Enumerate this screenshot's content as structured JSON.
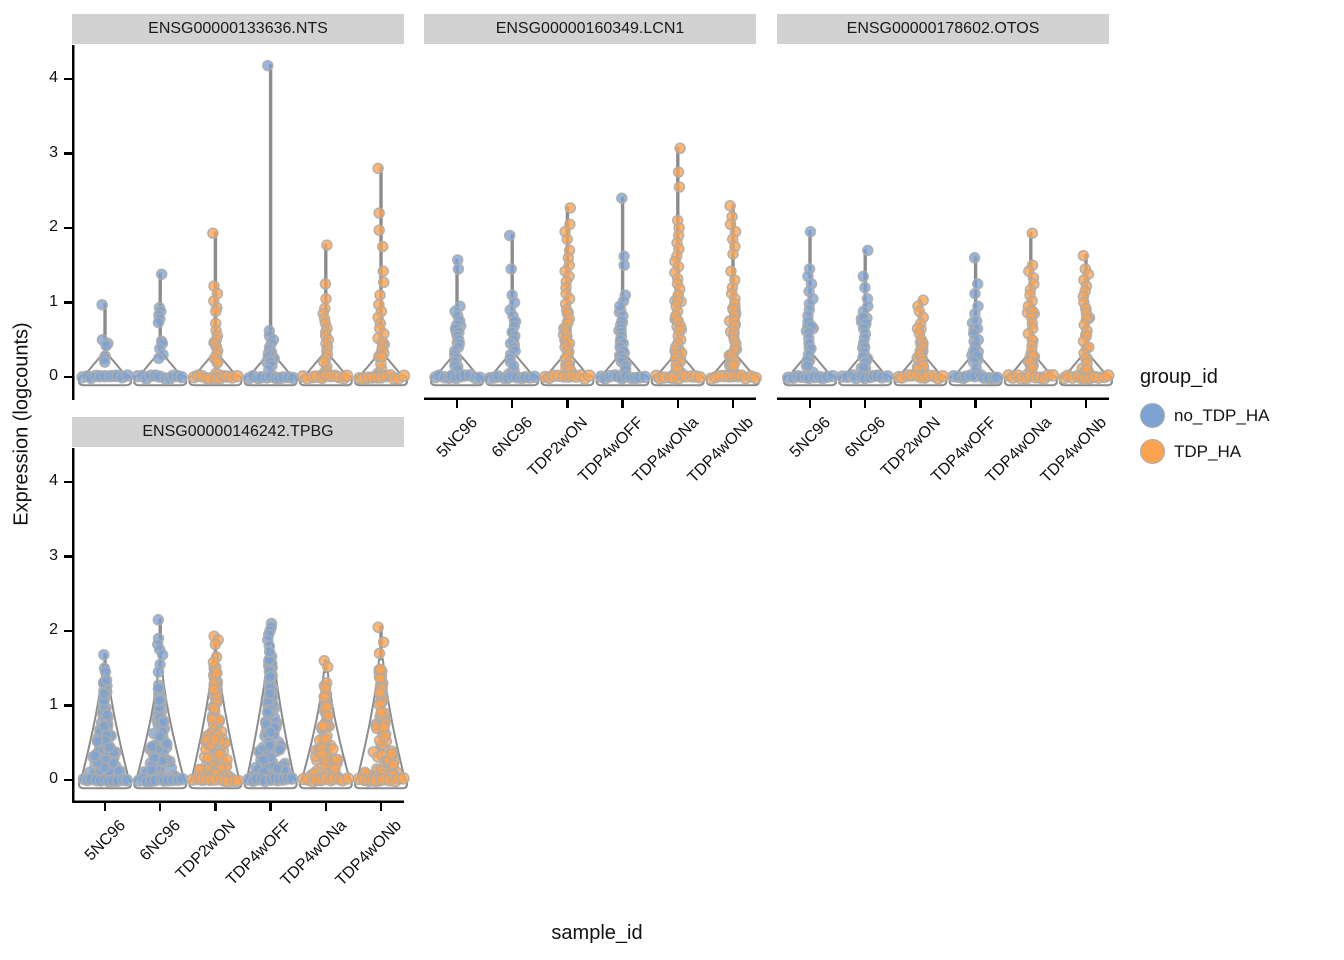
{
  "chart_data": {
    "type": "violin",
    "title": "",
    "xlabel": "sample_id",
    "ylabel": "Expression (logcounts)",
    "ylim": [
      0,
      4
    ],
    "y_ticks": [
      "0",
      "1",
      "2",
      "3",
      "4"
    ],
    "grid": false,
    "samples": [
      "5NC96",
      "6NC96",
      "TDP2wON",
      "TDP4wOFF",
      "TDP4wONa",
      "TDP4wONb"
    ],
    "legend": {
      "title": "group_id",
      "position": "right",
      "entries": [
        {
          "label": "no_TDP_HA",
          "color": "#7CA3D2"
        },
        {
          "label": "TDP_HA",
          "color": "#FBA350"
        }
      ]
    },
    "sample_groups": {
      "5NC96": "no_TDP_HA",
      "6NC96": "no_TDP_HA",
      "TDP2wON": "TDP_HA",
      "TDP4wOFF": "no_TDP_HA",
      "TDP4wONa": "TDP_HA",
      "TDP4wONb": "TDP_HA"
    },
    "style": {
      "violin_outline": "#8C8C8C",
      "point_stroke": "#ACACAC",
      "header_bg": "#D2D2D2",
      "axis_color": "#000000"
    },
    "facets": [
      {
        "gene": "ENSG00000133636.NTS",
        "violins": [
          {
            "sample": "5NC96",
            "group": 0,
            "max": 0.97,
            "points": [
              0.97,
              0.5,
              0.45,
              0.42,
              0.28,
              0.25,
              0.2
            ],
            "base_n": 11,
            "dense_n": 0,
            "dense_to": 0
          },
          {
            "sample": "6NC96",
            "group": 0,
            "max": 1.38,
            "points": [
              1.38,
              0.93,
              0.88,
              0.83,
              0.78,
              0.73,
              0.48,
              0.45,
              0.38,
              0.3,
              0.25
            ],
            "base_n": 11,
            "dense_n": 0,
            "dense_to": 0
          },
          {
            "sample": "TDP2wON",
            "group": 1,
            "max": 1.93,
            "points": [
              1.93,
              1.22,
              1.12,
              1.02,
              0.93,
              0.88,
              0.72,
              0.62,
              0.55,
              0.5,
              0.45,
              0.4,
              0.35,
              0.3,
              0.25,
              0.2
            ],
            "base_n": 11,
            "dense_n": 6,
            "dense_to": 0.5
          },
          {
            "sample": "TDP4wOFF",
            "group": 0,
            "max": 4.18,
            "points": [
              4.18,
              0.62,
              0.55,
              0.5,
              0.45,
              0.4,
              0.37,
              0.33,
              0.3,
              0.27,
              0.23,
              0.2,
              0.15,
              0.1
            ],
            "base_n": 11,
            "dense_n": 6,
            "dense_to": 0.45
          },
          {
            "sample": "TDP4wONa",
            "group": 1,
            "max": 1.77,
            "points": [
              1.77,
              1.25,
              1.05,
              0.92,
              0.85,
              0.78,
              0.72,
              0.65,
              0.6,
              0.55,
              0.5,
              0.45,
              0.4,
              0.35,
              0.3,
              0.25,
              0.2
            ],
            "base_n": 11,
            "dense_n": 6,
            "dense_to": 0.6
          },
          {
            "sample": "TDP4wONb",
            "group": 1,
            "max": 2.8,
            "points": [
              2.8,
              2.2,
              1.97,
              1.75,
              1.42,
              1.27,
              1.1,
              0.97,
              0.88,
              0.8,
              0.72,
              0.65,
              0.58,
              0.52,
              0.47,
              0.42,
              0.37,
              0.32,
              0.27
            ],
            "base_n": 11,
            "dense_n": 8,
            "dense_to": 0.6
          }
        ]
      },
      {
        "gene": "ENSG00000160349.LCN1",
        "violins": [
          {
            "sample": "5NC96",
            "group": 0,
            "max": 1.57,
            "points": [
              1.57,
              1.45,
              0.95,
              0.88,
              0.82,
              0.75,
              0.7,
              0.65,
              0.6,
              0.55,
              0.5,
              0.45,
              0.4,
              0.35,
              0.3,
              0.25,
              0.2,
              0.15,
              0.1
            ],
            "base_n": 11,
            "dense_n": 8,
            "dense_to": 0.7
          },
          {
            "sample": "6NC96",
            "group": 0,
            "max": 1.9,
            "points": [
              1.9,
              1.45,
              1.1,
              1.0,
              0.9,
              0.82,
              0.75,
              0.68,
              0.6,
              0.55,
              0.5,
              0.45,
              0.4,
              0.35,
              0.3,
              0.25,
              0.2,
              0.15
            ],
            "base_n": 11,
            "dense_n": 8,
            "dense_to": 0.75
          },
          {
            "sample": "TDP2wON",
            "group": 1,
            "max": 2.27,
            "points": [
              2.27,
              2.05,
              1.95,
              1.85,
              1.7,
              1.6,
              1.5,
              1.42,
              1.35,
              1.28,
              1.2,
              1.12,
              1.05,
              0.98,
              0.9,
              0.85,
              0.78,
              0.72,
              0.65,
              0.6,
              0.55,
              0.5,
              0.45,
              0.4,
              0.35,
              0.3,
              0.25,
              0.2,
              0.15,
              0.1
            ],
            "base_n": 11,
            "dense_n": 16,
            "dense_to": 1.0
          },
          {
            "sample": "TDP4wOFF",
            "group": 0,
            "max": 2.4,
            "points": [
              2.4,
              1.62,
              1.5,
              1.1,
              1.02,
              0.95,
              0.82,
              0.75,
              0.7,
              0.65,
              0.6,
              0.55,
              0.5,
              0.45,
              0.4,
              0.35,
              0.3,
              0.25,
              0.2,
              0.15,
              0.1
            ],
            "base_n": 11,
            "dense_n": 12,
            "dense_to": 0.9
          },
          {
            "sample": "TDP4wONa",
            "group": 1,
            "max": 3.07,
            "points": [
              3.07,
              2.75,
              2.55,
              2.1,
              2.0,
              1.9,
              1.8,
              1.72,
              1.62,
              1.55,
              1.48,
              1.4,
              1.32,
              1.25,
              1.18,
              1.1,
              1.02,
              0.95,
              0.88,
              0.82,
              0.75,
              0.68,
              0.62,
              0.55,
              0.5,
              0.45,
              0.4,
              0.35,
              0.3,
              0.25,
              0.2,
              0.15,
              0.1
            ],
            "base_n": 11,
            "dense_n": 18,
            "dense_to": 1.1
          },
          {
            "sample": "TDP4wONb",
            "group": 1,
            "max": 2.3,
            "points": [
              2.3,
              2.15,
              2.05,
              1.95,
              1.85,
              1.75,
              1.65,
              1.42,
              1.3,
              1.2,
              1.12,
              1.05,
              0.98,
              0.9,
              0.82,
              0.75,
              0.68,
              0.6,
              0.55,
              0.5,
              0.45,
              0.4,
              0.35,
              0.3,
              0.25,
              0.2,
              0.15
            ],
            "base_n": 11,
            "dense_n": 16,
            "dense_to": 1.0
          }
        ]
      },
      {
        "gene": "ENSG00000178602.OTOS",
        "violins": [
          {
            "sample": "5NC96",
            "group": 0,
            "max": 1.95,
            "points": [
              1.95,
              1.45,
              1.35,
              1.25,
              1.15,
              1.05,
              0.98,
              0.9,
              0.82,
              0.75,
              0.68,
              0.6,
              0.52,
              0.45,
              0.38,
              0.3,
              0.22,
              0.15
            ],
            "base_n": 11,
            "dense_n": 8,
            "dense_to": 0.8
          },
          {
            "sample": "6NC96",
            "group": 0,
            "max": 1.7,
            "points": [
              1.7,
              1.35,
              1.2,
              1.05,
              0.95,
              0.88,
              0.8,
              0.72,
              0.65,
              0.58,
              0.52,
              0.45,
              0.4,
              0.33,
              0.27,
              0.2,
              0.13
            ],
            "base_n": 11,
            "dense_n": 10,
            "dense_to": 0.8
          },
          {
            "sample": "TDP2wON",
            "group": 1,
            "max": 1.03,
            "points": [
              1.03,
              0.95,
              0.88,
              0.8,
              0.72,
              0.65,
              0.58,
              0.5,
              0.45,
              0.4,
              0.35,
              0.3,
              0.25,
              0.2,
              0.15,
              0.1
            ],
            "base_n": 11,
            "dense_n": 10,
            "dense_to": 0.7
          },
          {
            "sample": "TDP4wOFF",
            "group": 0,
            "max": 1.6,
            "points": [
              1.6,
              1.25,
              1.12,
              0.95,
              0.85,
              0.75,
              0.65,
              0.58,
              0.5,
              0.42,
              0.35,
              0.28,
              0.2,
              0.12
            ],
            "base_n": 11,
            "dense_n": 8,
            "dense_to": 0.8
          },
          {
            "sample": "TDP4wONa",
            "group": 1,
            "max": 1.93,
            "points": [
              1.93,
              1.5,
              1.42,
              1.33,
              1.25,
              1.17,
              1.1,
              1.02,
              0.95,
              0.88,
              0.8,
              0.72,
              0.65,
              0.58,
              0.5,
              0.42,
              0.35,
              0.28,
              0.2,
              0.12
            ],
            "base_n": 11,
            "dense_n": 14,
            "dense_to": 1.0
          },
          {
            "sample": "TDP4wONb",
            "group": 1,
            "max": 1.63,
            "points": [
              1.63,
              1.45,
              1.38,
              1.3,
              1.22,
              1.15,
              1.08,
              1.0,
              0.92,
              0.85,
              0.78,
              0.7,
              0.62,
              0.55,
              0.48,
              0.4,
              0.32,
              0.25,
              0.18,
              0.1
            ],
            "base_n": 11,
            "dense_n": 14,
            "dense_to": 1.0
          }
        ]
      },
      {
        "gene": "ENSG00000146242.TPBG",
        "violins": [
          {
            "sample": "5NC96",
            "group": 0,
            "max": 1.68,
            "points": [
              1.68,
              1.5,
              1.45
            ],
            "base_n": 11,
            "dense_n": 95,
            "dense_to": 1.4,
            "cone": 1.55
          },
          {
            "sample": "6NC96",
            "group": 0,
            "max": 2.15,
            "points": [
              2.15,
              1.9,
              1.82,
              1.75,
              1.68,
              1.55,
              1.45
            ],
            "base_n": 11,
            "dense_n": 100,
            "dense_to": 1.35,
            "cone": 1.5
          },
          {
            "sample": "TDP2wON",
            "group": 1,
            "max": 1.93,
            "points": [
              1.93,
              1.88,
              1.82,
              1.65,
              1.58
            ],
            "base_n": 11,
            "dense_n": 115,
            "dense_to": 1.55,
            "cone": 1.7
          },
          {
            "sample": "TDP4wOFF",
            "group": 0,
            "max": 2.1,
            "points": [
              2.1,
              2.05,
              2.0,
              1.95,
              1.88,
              1.8,
              1.72
            ],
            "base_n": 11,
            "dense_n": 135,
            "dense_to": 1.7,
            "cone": 1.85
          },
          {
            "sample": "TDP4wONa",
            "group": 1,
            "max": 1.6,
            "points": [
              1.6,
              1.52
            ],
            "base_n": 11,
            "dense_n": 75,
            "dense_to": 1.3,
            "cone": 1.45
          },
          {
            "sample": "TDP4wONb",
            "group": 1,
            "max": 2.05,
            "points": [
              2.05,
              1.85,
              1.7
            ],
            "base_n": 11,
            "dense_n": 85,
            "dense_to": 1.5,
            "cone": 1.62
          }
        ]
      }
    ]
  }
}
